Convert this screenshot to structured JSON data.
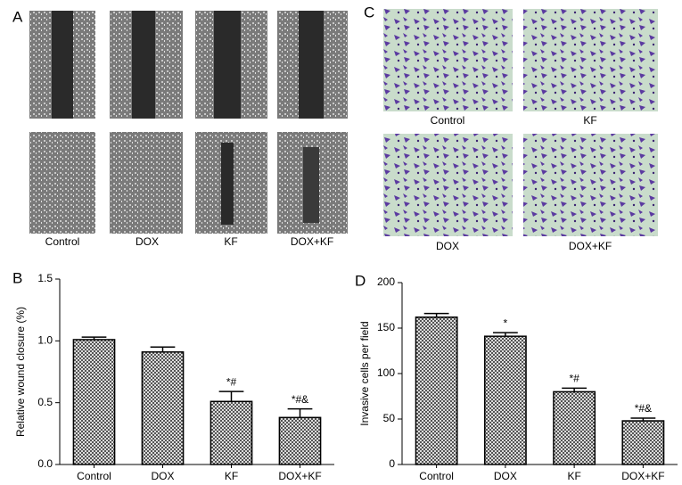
{
  "panel_labels": [
    "A",
    "B",
    "C",
    "D"
  ],
  "wound_images": {
    "labels": [
      "Control",
      "DOX",
      "KF",
      "DOX+KF"
    ]
  },
  "invasion_images": {
    "labels": [
      "Control",
      "KF",
      "DOX",
      "DOX+KF"
    ]
  },
  "chart_data": [
    {
      "type": "bar",
      "ylabel": "Relative wound closure (%)",
      "categories": [
        "Control",
        "DOX",
        "KF",
        "DOX+KF"
      ],
      "values": [
        1.01,
        0.91,
        0.51,
        0.38
      ],
      "errors": [
        0.02,
        0.04,
        0.08,
        0.07
      ],
      "annotations": [
        null,
        null,
        "*#",
        "*#&"
      ],
      "ylim": [
        0,
        1.5
      ],
      "yticks": [
        {
          "value": 0,
          "label": "0.0"
        },
        {
          "value": 0.5,
          "label": "0.5"
        },
        {
          "value": 1,
          "label": "1.0"
        },
        {
          "value": 1.5,
          "label": "1.5"
        }
      ]
    },
    {
      "type": "bar",
      "ylabel": "Invasive cells per field",
      "categories": [
        "Control",
        "DOX",
        "KF",
        "DOX+KF"
      ],
      "values": [
        162,
        141,
        80,
        48
      ],
      "errors": [
        4,
        4,
        4,
        3
      ],
      "annotations": [
        null,
        "*",
        "*#",
        "*#&"
      ],
      "ylim": [
        0,
        200
      ],
      "yticks": [
        0,
        50,
        100,
        150,
        200
      ]
    }
  ]
}
